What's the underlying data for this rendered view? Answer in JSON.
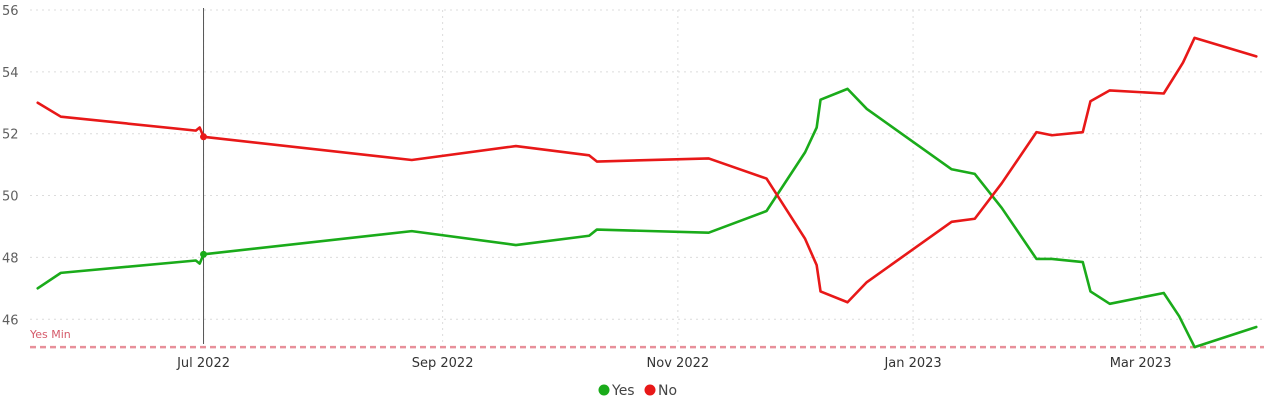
{
  "chart_data": {
    "type": "line",
    "title": "",
    "xlabel": "",
    "ylabel": "",
    "ylim": [
      45.2,
      56
    ],
    "yticks": [
      46,
      48,
      50,
      52,
      54,
      56
    ],
    "xticks": [
      {
        "label": "Jul 2022",
        "date": "2022-07-01"
      },
      {
        "label": "Sep 2022",
        "date": "2022-09-01"
      },
      {
        "label": "Nov 2022",
        "date": "2022-11-01"
      },
      {
        "label": "Jan 2023",
        "date": "2023-01-01"
      },
      {
        "label": "Mar 2023",
        "date": "2023-03-01"
      }
    ],
    "xlim": [
      "2022-05-17",
      "2023-04-02"
    ],
    "grid": true,
    "legend_position": "bottom-center",
    "series": [
      {
        "name": "Yes",
        "color": "#1aab1a",
        "points": [
          [
            "2022-05-19",
            47.0
          ],
          [
            "2022-05-25",
            47.5
          ],
          [
            "2022-06-29",
            47.9
          ],
          [
            "2022-06-30",
            47.8
          ],
          [
            "2022-07-01",
            48.1
          ],
          [
            "2022-08-24",
            48.85
          ],
          [
            "2022-09-20",
            48.4
          ],
          [
            "2022-10-09",
            48.7
          ],
          [
            "2022-10-11",
            48.9
          ],
          [
            "2022-11-09",
            48.8
          ],
          [
            "2022-11-24",
            49.5
          ],
          [
            "2022-12-04",
            51.4
          ],
          [
            "2022-12-07",
            52.2
          ],
          [
            "2022-12-08",
            53.1
          ],
          [
            "2022-12-15",
            53.45
          ],
          [
            "2022-12-20",
            52.8
          ],
          [
            "2023-01-11",
            50.85
          ],
          [
            "2023-01-17",
            50.7
          ],
          [
            "2023-01-24",
            49.6
          ],
          [
            "2023-02-02",
            47.95
          ],
          [
            "2023-02-06",
            47.95
          ],
          [
            "2023-02-14",
            47.85
          ],
          [
            "2023-02-16",
            46.9
          ],
          [
            "2023-02-21",
            46.5
          ],
          [
            "2023-03-07",
            46.85
          ],
          [
            "2023-03-11",
            46.1
          ],
          [
            "2023-03-12",
            45.85
          ],
          [
            "2023-03-15",
            45.1
          ],
          [
            "2023-03-31",
            45.75
          ]
        ]
      },
      {
        "name": "No",
        "color": "#e81818",
        "points": [
          [
            "2022-05-19",
            53.0
          ],
          [
            "2022-05-25",
            52.55
          ],
          [
            "2022-06-29",
            52.1
          ],
          [
            "2022-06-30",
            52.2
          ],
          [
            "2022-07-01",
            51.9
          ],
          [
            "2022-08-24",
            51.15
          ],
          [
            "2022-09-20",
            51.6
          ],
          [
            "2022-10-09",
            51.3
          ],
          [
            "2022-10-11",
            51.1
          ],
          [
            "2022-11-09",
            51.2
          ],
          [
            "2022-11-24",
            50.55
          ],
          [
            "2022-12-04",
            48.6
          ],
          [
            "2022-12-07",
            47.75
          ],
          [
            "2022-12-08",
            46.9
          ],
          [
            "2022-12-15",
            46.55
          ],
          [
            "2022-12-20",
            47.2
          ],
          [
            "2023-01-11",
            49.15
          ],
          [
            "2023-01-17",
            49.25
          ],
          [
            "2023-01-24",
            50.4
          ],
          [
            "2023-02-02",
            52.05
          ],
          [
            "2023-02-06",
            51.95
          ],
          [
            "2023-02-14",
            52.05
          ],
          [
            "2023-02-16",
            53.05
          ],
          [
            "2023-02-21",
            53.4
          ],
          [
            "2023-03-07",
            53.3
          ],
          [
            "2023-03-11",
            54.1
          ],
          [
            "2023-03-12",
            54.3
          ],
          [
            "2023-03-15",
            55.1
          ],
          [
            "2023-03-31",
            54.5
          ]
        ]
      }
    ],
    "reference_line": {
      "label": "Yes Min",
      "value": 45.1,
      "color": "#e8909a",
      "style": "dashed"
    },
    "cursor": {
      "date": "2022-07-01",
      "values": {
        "Yes": 48.1,
        "No": 51.9
      }
    }
  }
}
